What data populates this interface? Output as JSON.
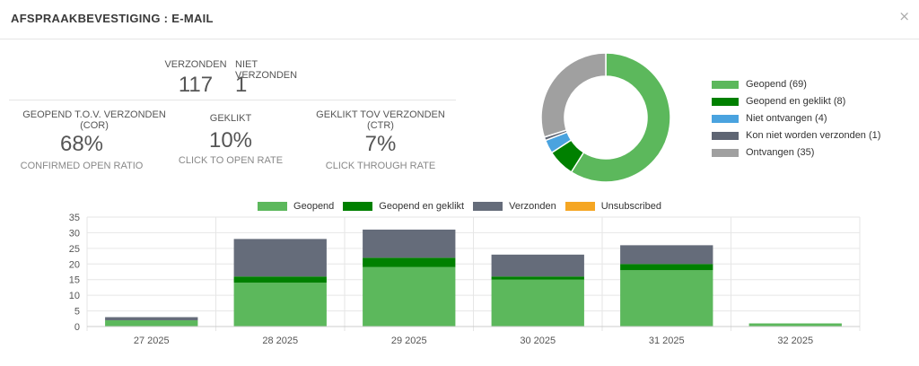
{
  "header": {
    "title": "AFSPRAAKBEVESTIGING : E-MAIL",
    "close": "×"
  },
  "stats": {
    "sent": {
      "label": "VERZONDEN",
      "value": "117"
    },
    "not_sent": {
      "label": "NIET VERZONDEN",
      "value": "1"
    },
    "cor": {
      "label1": "GEOPEND T.O.V. VERZONDEN",
      "label2": "(COR)",
      "value": "68%",
      "sub": "CONFIRMED OPEN RATIO"
    },
    "clicked": {
      "label": "GEKLIKT",
      "value": "10%",
      "sub": "CLICK TO OPEN RATE"
    },
    "ctr": {
      "label1": "GEKLIKT TOV VERZONDEN",
      "label2": "(CTR)",
      "value": "7%",
      "sub": "CLICK THROUGH RATE"
    }
  },
  "donut": {
    "legend": [
      {
        "label": "Geopend (69)",
        "value": 69,
        "color": "#5cb85c"
      },
      {
        "label": "Geopend en geklikt (8)",
        "value": 8,
        "color": "#008000"
      },
      {
        "label": "Niet ontvangen (4)",
        "value": 4,
        "color": "#4aa3df"
      },
      {
        "label": "Kon niet worden verzonden (1)",
        "value": 1,
        "color": "#5e6573"
      },
      {
        "label": "Ontvangen (35)",
        "value": 35,
        "color": "#a0a0a0"
      }
    ]
  },
  "chart_data": {
    "type": "bar",
    "stacked": true,
    "categories": [
      "27 2025",
      "28 2025",
      "29 2025",
      "30 2025",
      "31 2025",
      "32 2025"
    ],
    "series": [
      {
        "name": "Geopend",
        "color": "#5cb85c",
        "values": [
          2,
          14,
          19,
          15,
          18,
          1
        ]
      },
      {
        "name": "Geopend en geklikt",
        "color": "#008000",
        "values": [
          0,
          2,
          3,
          1,
          2,
          0
        ]
      },
      {
        "name": "Verzonden",
        "color": "#656c7a",
        "values": [
          1,
          12,
          9,
          7,
          6,
          0
        ]
      },
      {
        "name": "Unsubscribed",
        "color": "#f5a623",
        "values": [
          0,
          0,
          0,
          0,
          0,
          0
        ]
      }
    ],
    "ylim": [
      0,
      35
    ],
    "yticks": [
      "0",
      "5",
      "10",
      "15",
      "20",
      "25",
      "30",
      "35"
    ],
    "grid": true,
    "legend_position": "top"
  }
}
